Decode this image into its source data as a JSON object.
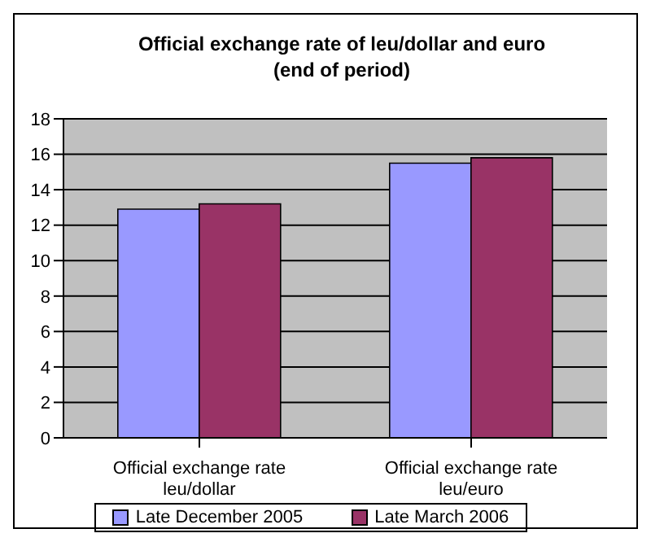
{
  "chart_data": {
    "type": "bar",
    "title": "Official exchange rate of leu/dollar and euro\n(end of period)",
    "categories": [
      "Official exchange rate leu/dollar",
      "Official exchange rate leu/euro"
    ],
    "series": [
      {
        "name": "Late December 2005",
        "color": "#9999ff",
        "values": [
          12.9,
          15.5
        ]
      },
      {
        "name": "Late March 2006",
        "color": "#993366",
        "values": [
          13.2,
          15.8
        ]
      }
    ],
    "ylim": [
      0,
      18
    ],
    "yticks": [
      0,
      2,
      4,
      6,
      8,
      10,
      12,
      14,
      16,
      18
    ],
    "grid": "y",
    "legend": "bottom"
  }
}
